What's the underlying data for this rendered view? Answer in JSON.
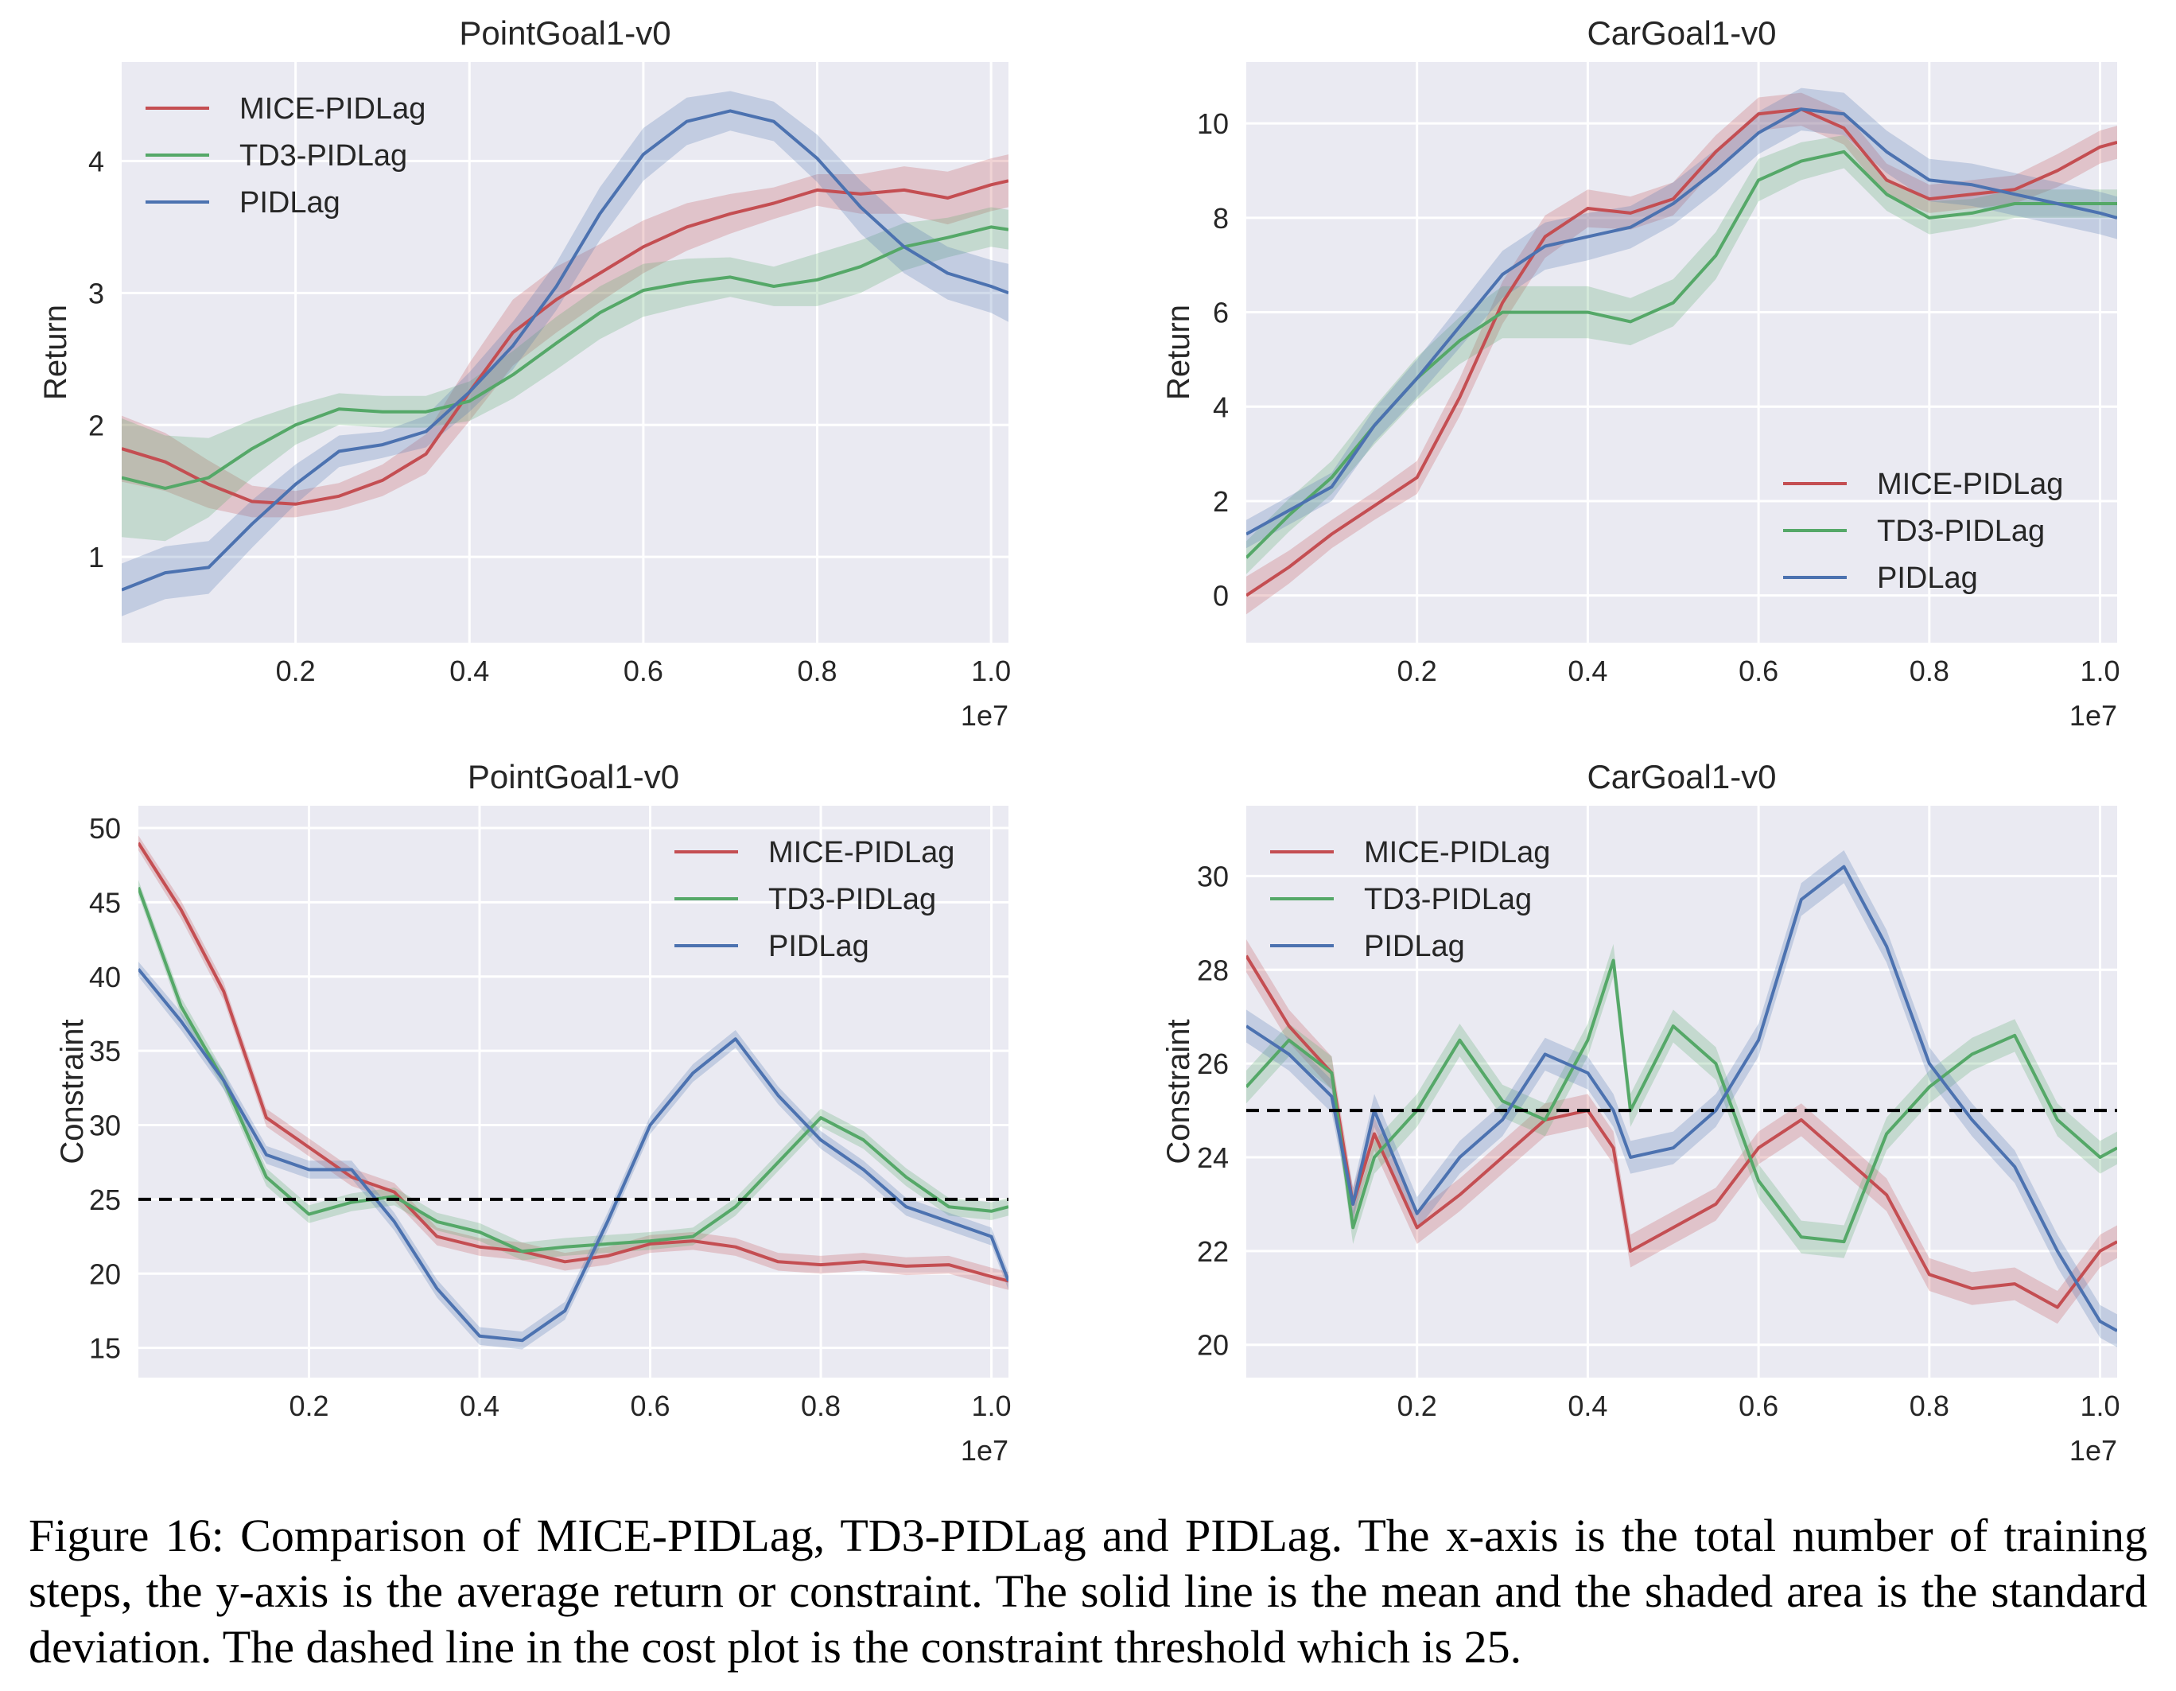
{
  "caption": "Figure 16: Comparison of MICE-PIDLag, TD3-PIDLag and PIDLag. The x-axis is the total number of training steps, the y-axis is the average return or constraint. The solid line is the mean and the shaded area is the standard deviation. The dashed line in the cost plot is the constraint threshold which is 25.",
  "colors": {
    "MICE-PIDLag": "#c44e52",
    "TD3-PIDLag": "#55a868",
    "PIDLag": "#4c72b0",
    "plot_background": "#eaeaf2",
    "grid": "#ffffff",
    "threshold": "#000000"
  },
  "chart_data": [
    {
      "type": "line",
      "title": "PointGoal1-v0",
      "ylabel": "Return",
      "xlabel": "",
      "x_scale_label": "1e7",
      "xlim": [
        0.0,
        1.02
      ],
      "ylim": [
        0.35,
        4.75
      ],
      "xticks": [
        0.2,
        0.4,
        0.6,
        0.8,
        1.0
      ],
      "xtick_labels": [
        "0.2",
        "0.4",
        "0.6",
        "0.8",
        "1.0"
      ],
      "yticks": [
        1,
        2,
        3,
        4
      ],
      "ytick_labels": [
        "1",
        "2",
        "3",
        "4"
      ],
      "grid": true,
      "legend": "top-left",
      "threshold": null,
      "x": [
        0.0,
        0.05,
        0.1,
        0.15,
        0.2,
        0.25,
        0.3,
        0.35,
        0.4,
        0.45,
        0.5,
        0.55,
        0.6,
        0.65,
        0.7,
        0.75,
        0.8,
        0.85,
        0.9,
        0.95,
        1.0,
        1.02
      ],
      "series": [
        {
          "name": "MICE-PIDLag",
          "values": [
            1.82,
            1.72,
            1.55,
            1.42,
            1.4,
            1.46,
            1.58,
            1.78,
            2.25,
            2.7,
            2.95,
            3.15,
            3.35,
            3.5,
            3.6,
            3.68,
            3.78,
            3.75,
            3.78,
            3.72,
            3.82,
            3.85
          ],
          "std": [
            0.25,
            0.22,
            0.18,
            0.12,
            0.1,
            0.1,
            0.12,
            0.15,
            0.22,
            0.25,
            0.25,
            0.22,
            0.2,
            0.18,
            0.15,
            0.12,
            0.12,
            0.15,
            0.18,
            0.2,
            0.2,
            0.2
          ]
        },
        {
          "name": "TD3-PIDLag",
          "values": [
            1.6,
            1.52,
            1.6,
            1.82,
            2.0,
            2.12,
            2.1,
            2.1,
            2.18,
            2.38,
            2.62,
            2.85,
            3.02,
            3.08,
            3.12,
            3.05,
            3.1,
            3.2,
            3.35,
            3.42,
            3.5,
            3.48
          ],
          "std": [
            0.45,
            0.4,
            0.3,
            0.22,
            0.15,
            0.12,
            0.12,
            0.12,
            0.15,
            0.18,
            0.2,
            0.2,
            0.2,
            0.18,
            0.15,
            0.15,
            0.2,
            0.2,
            0.18,
            0.15,
            0.15,
            0.15
          ]
        },
        {
          "name": "PIDLag",
          "values": [
            0.75,
            0.88,
            0.92,
            1.25,
            1.55,
            1.8,
            1.85,
            1.95,
            2.25,
            2.6,
            3.05,
            3.6,
            4.05,
            4.3,
            4.38,
            4.3,
            4.02,
            3.65,
            3.35,
            3.15,
            3.05,
            3.0
          ],
          "std": [
            0.2,
            0.2,
            0.2,
            0.18,
            0.15,
            0.12,
            0.1,
            0.12,
            0.15,
            0.18,
            0.18,
            0.2,
            0.2,
            0.18,
            0.15,
            0.15,
            0.18,
            0.2,
            0.2,
            0.2,
            0.2,
            0.22
          ]
        }
      ]
    },
    {
      "type": "line",
      "title": "CarGoal1-v0",
      "ylabel": "Return",
      "xlabel": "",
      "x_scale_label": "1e7",
      "xlim": [
        0.0,
        1.02
      ],
      "ylim": [
        -1.0,
        11.3
      ],
      "xticks": [
        0.2,
        0.4,
        0.6,
        0.8,
        1.0
      ],
      "xtick_labels": [
        "0.2",
        "0.4",
        "0.6",
        "0.8",
        "1.0"
      ],
      "yticks": [
        0,
        2,
        4,
        6,
        8,
        10
      ],
      "ytick_labels": [
        "0",
        "2",
        "4",
        "6",
        "8",
        "10"
      ],
      "grid": true,
      "legend": "bottom-right",
      "threshold": null,
      "x": [
        0.0,
        0.05,
        0.1,
        0.15,
        0.2,
        0.25,
        0.3,
        0.35,
        0.4,
        0.45,
        0.5,
        0.55,
        0.6,
        0.65,
        0.7,
        0.75,
        0.8,
        0.85,
        0.9,
        0.95,
        1.0,
        1.02
      ],
      "series": [
        {
          "name": "MICE-PIDLag",
          "values": [
            0.0,
            0.6,
            1.3,
            1.9,
            2.5,
            4.2,
            6.2,
            7.6,
            8.2,
            8.1,
            8.4,
            9.4,
            10.2,
            10.3,
            9.9,
            8.8,
            8.4,
            8.5,
            8.6,
            9.0,
            9.5,
            9.6
          ],
          "std": [
            0.4,
            0.35,
            0.3,
            0.3,
            0.35,
            0.4,
            0.45,
            0.45,
            0.4,
            0.35,
            0.35,
            0.35,
            0.35,
            0.35,
            0.35,
            0.35,
            0.3,
            0.3,
            0.3,
            0.35,
            0.35,
            0.35
          ]
        },
        {
          "name": "TD3-PIDLag",
          "values": [
            0.8,
            1.7,
            2.5,
            3.6,
            4.6,
            5.4,
            6.0,
            6.0,
            6.0,
            5.8,
            6.2,
            7.2,
            8.8,
            9.2,
            9.4,
            8.5,
            8.0,
            8.1,
            8.3,
            8.3,
            8.3,
            8.3
          ],
          "std": [
            0.35,
            0.35,
            0.35,
            0.4,
            0.45,
            0.5,
            0.55,
            0.55,
            0.55,
            0.5,
            0.5,
            0.5,
            0.45,
            0.4,
            0.35,
            0.35,
            0.35,
            0.3,
            0.3,
            0.3,
            0.3,
            0.3
          ]
        },
        {
          "name": "PIDLag",
          "values": [
            1.3,
            1.8,
            2.3,
            3.6,
            4.6,
            5.7,
            6.8,
            7.4,
            7.6,
            7.8,
            8.3,
            9.0,
            9.8,
            10.3,
            10.2,
            9.4,
            8.8,
            8.7,
            8.5,
            8.3,
            8.1,
            8.0
          ],
          "std": [
            0.3,
            0.3,
            0.3,
            0.35,
            0.4,
            0.45,
            0.5,
            0.5,
            0.5,
            0.45,
            0.45,
            0.45,
            0.45,
            0.45,
            0.45,
            0.45,
            0.45,
            0.45,
            0.45,
            0.45,
            0.45,
            0.45
          ]
        }
      ]
    },
    {
      "type": "line",
      "title": "PointGoal1-v0",
      "ylabel": "Constraint",
      "xlabel": "",
      "x_scale_label": "1e7",
      "xlim": [
        0.0,
        1.02
      ],
      "ylim": [
        13.0,
        51.5
      ],
      "xticks": [
        0.2,
        0.4,
        0.6,
        0.8,
        1.0
      ],
      "xtick_labels": [
        "0.2",
        "0.4",
        "0.6",
        "0.8",
        "1.0"
      ],
      "yticks": [
        15,
        20,
        25,
        30,
        35,
        40,
        45,
        50
      ],
      "ytick_labels": [
        "15",
        "20",
        "25",
        "30",
        "35",
        "40",
        "45",
        "50"
      ],
      "grid": true,
      "legend": "top-right",
      "threshold": 25,
      "x": [
        0.0,
        0.05,
        0.1,
        0.15,
        0.2,
        0.25,
        0.3,
        0.35,
        0.4,
        0.45,
        0.5,
        0.55,
        0.6,
        0.65,
        0.7,
        0.75,
        0.8,
        0.85,
        0.9,
        0.95,
        1.0,
        1.02
      ],
      "series": [
        {
          "name": "MICE-PIDLag",
          "values": [
            49.0,
            44.5,
            39.0,
            30.5,
            28.5,
            26.5,
            25.5,
            22.5,
            21.8,
            21.5,
            20.8,
            21.2,
            22.0,
            22.2,
            21.8,
            20.8,
            20.6,
            20.8,
            20.5,
            20.6,
            19.8,
            19.5
          ],
          "std": [
            0.5,
            0.6,
            0.6,
            0.6,
            0.6,
            0.6,
            0.6,
            0.6,
            0.6,
            0.6,
            0.6,
            0.6,
            0.6,
            0.6,
            0.6,
            0.6,
            0.6,
            0.6,
            0.6,
            0.6,
            0.6,
            0.6
          ]
        },
        {
          "name": "TD3-PIDLag",
          "values": [
            46.0,
            38.0,
            33.0,
            26.5,
            24.0,
            24.8,
            25.2,
            23.5,
            22.8,
            21.5,
            21.8,
            22.0,
            22.2,
            22.5,
            24.5,
            27.5,
            30.5,
            29.0,
            26.5,
            24.5,
            24.2,
            24.5
          ],
          "std": [
            0.5,
            0.6,
            0.6,
            0.6,
            0.6,
            0.6,
            0.6,
            0.6,
            0.6,
            0.6,
            0.6,
            0.6,
            0.6,
            0.6,
            0.6,
            0.6,
            0.6,
            0.6,
            0.6,
            0.6,
            0.6,
            0.6
          ]
        },
        {
          "name": "PIDLag",
          "values": [
            40.5,
            37.0,
            33.0,
            28.0,
            27.0,
            27.0,
            23.5,
            19.0,
            15.8,
            15.5,
            17.5,
            23.5,
            30.0,
            33.5,
            35.8,
            32.0,
            29.0,
            27.0,
            24.5,
            23.5,
            22.5,
            19.5
          ],
          "std": [
            0.5,
            0.6,
            0.6,
            0.6,
            0.6,
            0.6,
            0.6,
            0.6,
            0.6,
            0.6,
            0.6,
            0.6,
            0.6,
            0.6,
            0.6,
            0.6,
            0.6,
            0.6,
            0.6,
            0.6,
            0.6,
            0.6
          ]
        }
      ]
    },
    {
      "type": "line",
      "title": "CarGoal1-v0",
      "ylabel": "Constraint",
      "xlabel": "",
      "x_scale_label": "1e7",
      "xlim": [
        0.0,
        1.02
      ],
      "ylim": [
        19.3,
        31.5
      ],
      "xticks": [
        0.2,
        0.4,
        0.6,
        0.8,
        1.0
      ],
      "xtick_labels": [
        "0.2",
        "0.4",
        "0.6",
        "0.8",
        "1.0"
      ],
      "yticks": [
        20,
        22,
        24,
        26,
        28,
        30
      ],
      "ytick_labels": [
        "20",
        "22",
        "24",
        "26",
        "28",
        "30"
      ],
      "grid": true,
      "legend": "top-left",
      "threshold": 25,
      "x": [
        0.0,
        0.05,
        0.1,
        0.125,
        0.15,
        0.2,
        0.25,
        0.3,
        0.35,
        0.4,
        0.43,
        0.45,
        0.5,
        0.55,
        0.6,
        0.65,
        0.7,
        0.75,
        0.8,
        0.85,
        0.9,
        0.95,
        1.0,
        1.02
      ],
      "series": [
        {
          "name": "MICE-PIDLag",
          "values": [
            28.3,
            26.8,
            25.8,
            23.0,
            24.5,
            22.5,
            23.2,
            24.0,
            24.8,
            25.0,
            24.2,
            22.0,
            22.5,
            23.0,
            24.2,
            24.8,
            24.0,
            23.2,
            21.5,
            21.2,
            21.3,
            20.8,
            22.0,
            22.2
          ],
          "std": [
            0.35,
            0.35,
            0.35,
            0.35,
            0.35,
            0.35,
            0.35,
            0.35,
            0.35,
            0.35,
            0.35,
            0.35,
            0.35,
            0.35,
            0.35,
            0.35,
            0.35,
            0.35,
            0.35,
            0.35,
            0.35,
            0.35,
            0.35,
            0.35
          ]
        },
        {
          "name": "TD3-PIDLag",
          "values": [
            25.5,
            26.5,
            25.8,
            22.5,
            24.0,
            25.0,
            26.5,
            25.2,
            24.8,
            26.5,
            28.2,
            25.0,
            26.8,
            26.0,
            23.5,
            22.3,
            22.2,
            24.5,
            25.5,
            26.2,
            26.6,
            24.8,
            24.0,
            24.2
          ],
          "std": [
            0.35,
            0.35,
            0.35,
            0.35,
            0.35,
            0.35,
            0.35,
            0.35,
            0.35,
            0.35,
            0.35,
            0.35,
            0.35,
            0.35,
            0.35,
            0.35,
            0.35,
            0.35,
            0.35,
            0.35,
            0.35,
            0.35,
            0.35,
            0.35
          ]
        },
        {
          "name": "PIDLag",
          "values": [
            26.8,
            26.2,
            25.3,
            23.0,
            25.0,
            22.8,
            24.0,
            24.8,
            26.2,
            25.8,
            25.0,
            24.0,
            24.2,
            25.0,
            26.5,
            29.5,
            30.2,
            28.5,
            26.0,
            24.8,
            23.8,
            22.0,
            20.5,
            20.3
          ],
          "std": [
            0.35,
            0.35,
            0.35,
            0.35,
            0.35,
            0.35,
            0.35,
            0.35,
            0.35,
            0.35,
            0.35,
            0.35,
            0.35,
            0.35,
            0.35,
            0.35,
            0.35,
            0.35,
            0.35,
            0.35,
            0.35,
            0.35,
            0.35,
            0.35
          ]
        }
      ]
    }
  ]
}
